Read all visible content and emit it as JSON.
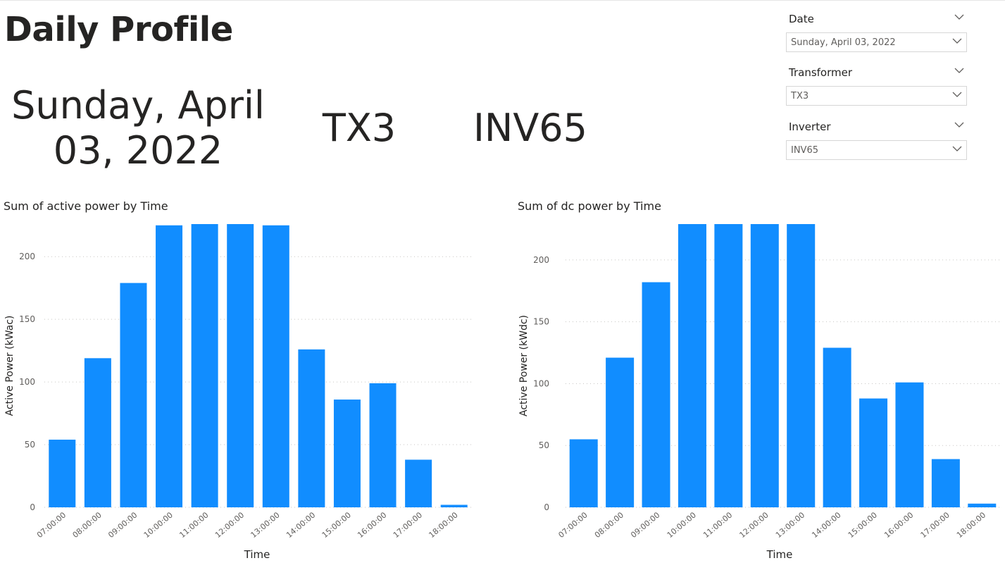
{
  "page": {
    "title": "Daily Profile"
  },
  "cards": {
    "date": "Sunday, April 03, 2022",
    "transformer": "TX3",
    "inverter": "INV65"
  },
  "slicers": [
    {
      "label": "Date",
      "value": "Sunday, April 03, 2022",
      "icon": "chevron-down-icon"
    },
    {
      "label": "Transformer",
      "value": "TX3",
      "icon": "chevron-down-icon"
    },
    {
      "label": "Inverter",
      "value": "INV65",
      "icon": "chevron-down-icon"
    }
  ],
  "colors": {
    "bar": "#118DFF",
    "text": "#252423",
    "axis": "#605E5C",
    "grid": "#C8C6C4"
  },
  "chart_data": [
    {
      "type": "bar",
      "title": "Sum of active power by Time",
      "xlabel": "Time",
      "ylabel": "Active Power (kWac)",
      "categories": [
        "07:00:00",
        "08:00:00",
        "09:00:00",
        "10:00:00",
        "11:00:00",
        "12:00:00",
        "13:00:00",
        "14:00:00",
        "15:00:00",
        "16:00:00",
        "17:00:00",
        "18:00:00"
      ],
      "values": [
        54,
        119,
        179,
        225,
        226,
        226,
        225,
        126,
        86,
        99,
        38,
        2
      ],
      "ylim": [
        0,
        226
      ],
      "yticks": [
        0,
        50,
        100,
        150,
        200
      ],
      "grid": true
    },
    {
      "type": "bar",
      "title": "Sum of dc power by Time",
      "xlabel": "Time",
      "ylabel": "Active Power (kWdc)",
      "categories": [
        "07:00:00",
        "08:00:00",
        "09:00:00",
        "10:00:00",
        "11:00:00",
        "12:00:00",
        "13:00:00",
        "14:00:00",
        "15:00:00",
        "16:00:00",
        "17:00:00",
        "18:00:00"
      ],
      "values": [
        55,
        121,
        182,
        229,
        229,
        229,
        229,
        129,
        88,
        101,
        39,
        3
      ],
      "ylim": [
        0,
        229
      ],
      "yticks": [
        0,
        50,
        100,
        150,
        200
      ],
      "grid": true
    }
  ]
}
